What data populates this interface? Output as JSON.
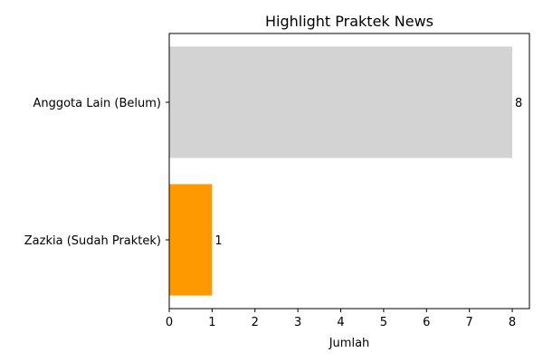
{
  "chart_data": {
    "type": "bar",
    "orientation": "horizontal",
    "title": "Highlight Praktek News",
    "xlabel": "Jumlah",
    "ylabel": "",
    "categories": [
      "Zazkia (Sudah Praktek)",
      "Anggota Lain (Belum)"
    ],
    "values": [
      1,
      8
    ],
    "value_labels": [
      "1",
      "8"
    ],
    "colors": [
      "#ff9900",
      "#d3d3d3"
    ],
    "xlim": [
      0,
      8.4
    ],
    "xticks": [
      0,
      1,
      2,
      3,
      4,
      5,
      6,
      7,
      8
    ],
    "xtick_labels": [
      "0",
      "1",
      "2",
      "3",
      "4",
      "5",
      "6",
      "7",
      "8"
    ],
    "grid": false,
    "legend": "none"
  }
}
